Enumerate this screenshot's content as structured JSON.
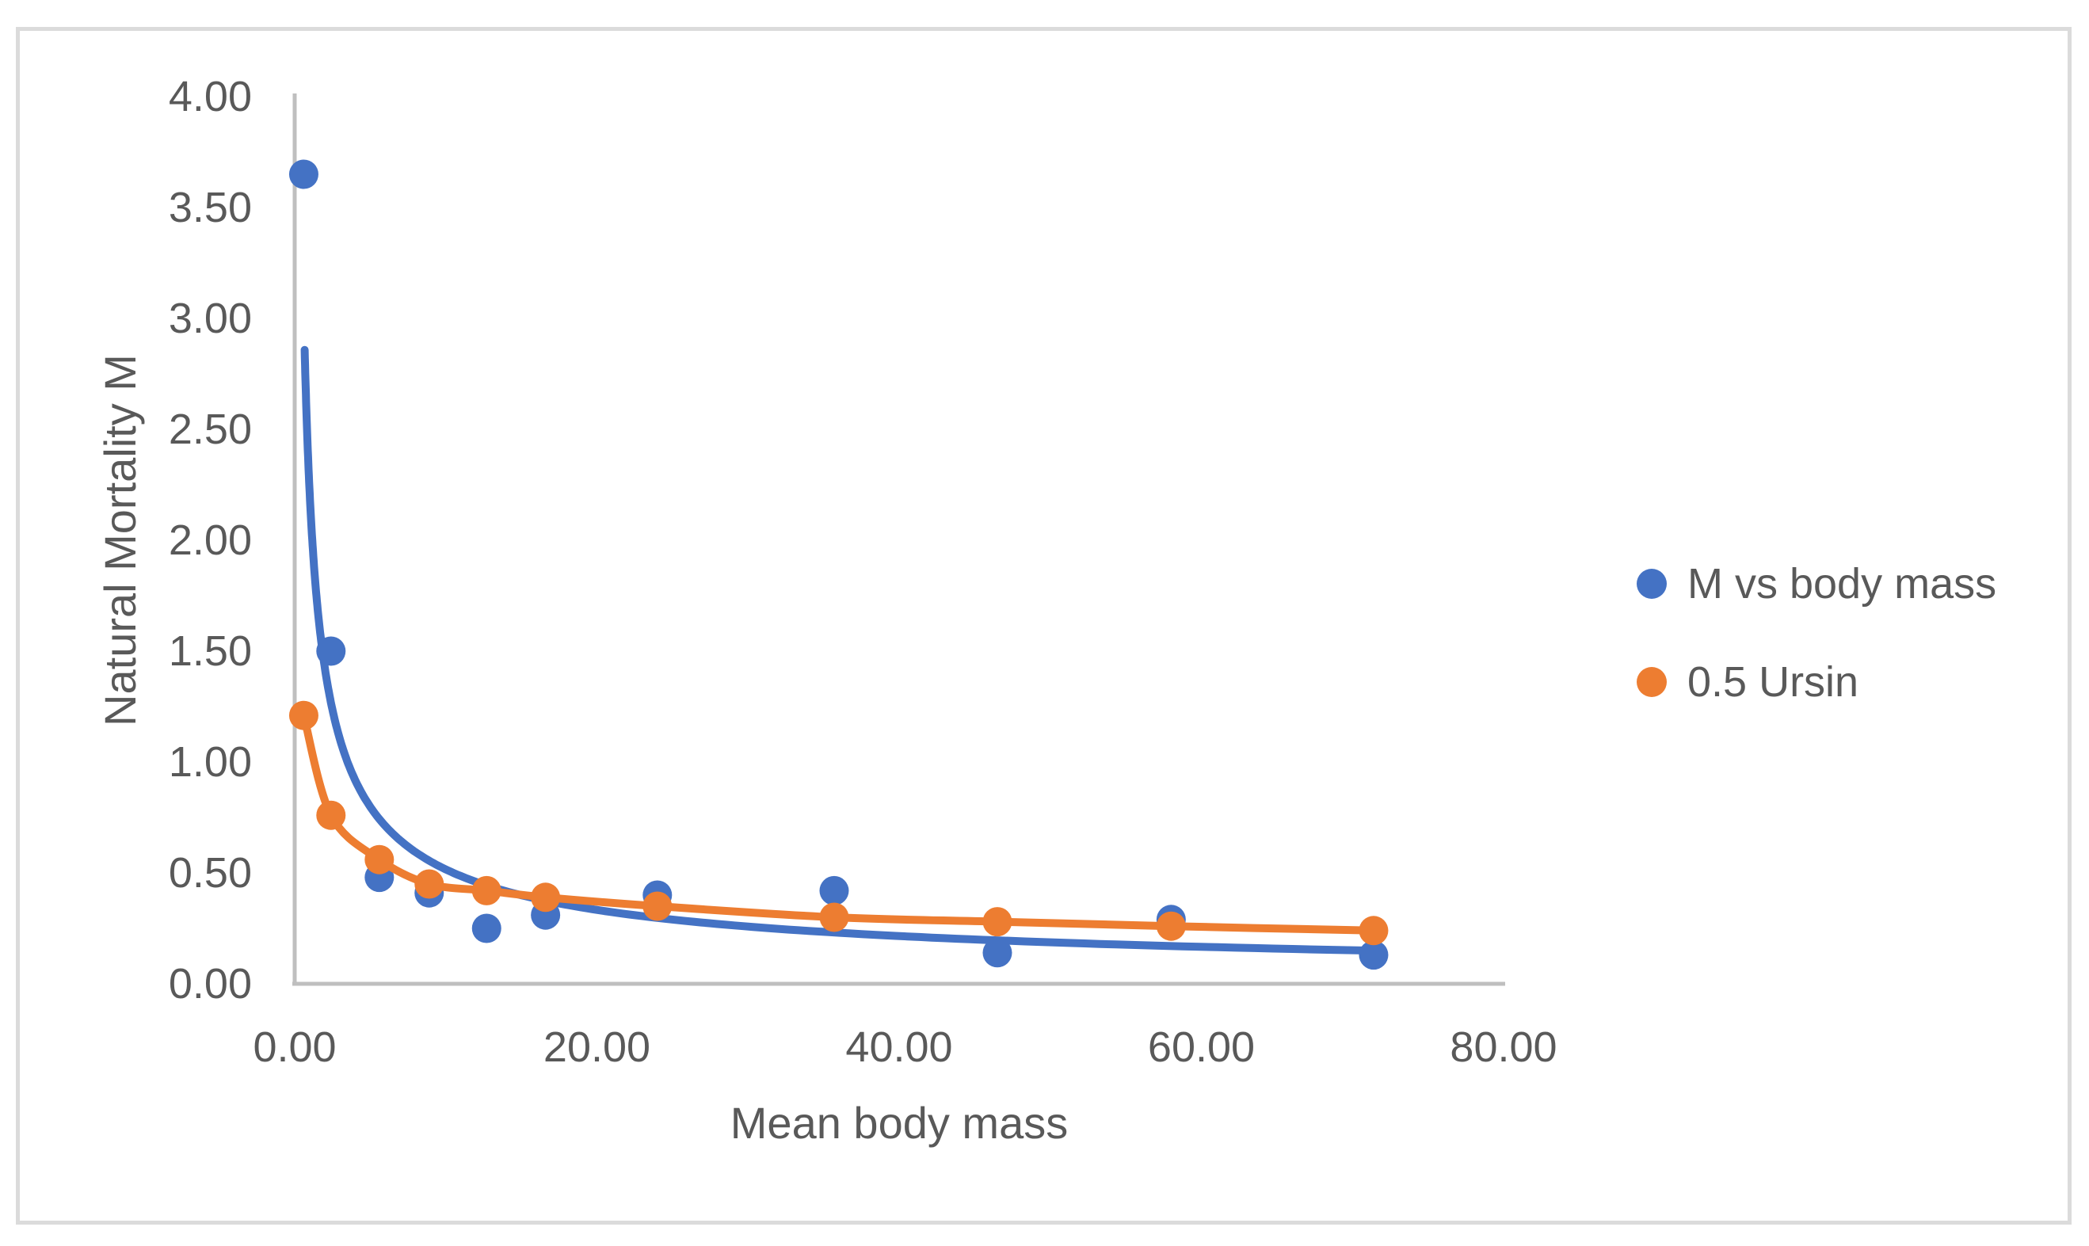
{
  "frame": {
    "border_color": "#DBDBDB",
    "background_color": "#FFFFFF"
  },
  "axes_style": {
    "axis_line_color": "#BFBFBF",
    "tick_label_color": "#595959",
    "title_color": "#595959"
  },
  "chart_data": {
    "type": "scatter",
    "title": "",
    "xlabel": "Mean body mass",
    "ylabel": "Natural Mortality M",
    "xlim": [
      0,
      80
    ],
    "ylim": [
      0,
      4
    ],
    "grid": false,
    "legend_position": "right-middle",
    "x_ticks": [
      {
        "value": 0,
        "label": "0.00"
      },
      {
        "value": 20,
        "label": "20.00"
      },
      {
        "value": 40,
        "label": "40.00"
      },
      {
        "value": 60,
        "label": "60.00"
      },
      {
        "value": 80,
        "label": "80.00"
      }
    ],
    "y_ticks": [
      {
        "value": 0.0,
        "label": "0.00"
      },
      {
        "value": 0.5,
        "label": "0.50"
      },
      {
        "value": 1.0,
        "label": "1.00"
      },
      {
        "value": 1.5,
        "label": "1.50"
      },
      {
        "value": 2.0,
        "label": "2.00"
      },
      {
        "value": 2.5,
        "label": "2.50"
      },
      {
        "value": 3.0,
        "label": "3.00"
      },
      {
        "value": 3.5,
        "label": "3.50"
      },
      {
        "value": 4.0,
        "label": "4.00"
      }
    ],
    "series": [
      {
        "name": "M vs body mass",
        "color": "#4472C4",
        "style": "markers-only",
        "points": [
          [
            0.6,
            3.65
          ],
          [
            2.4,
            1.5
          ],
          [
            5.6,
            0.48
          ],
          [
            8.9,
            0.41
          ],
          [
            12.7,
            0.25
          ],
          [
            16.6,
            0.31
          ],
          [
            24.0,
            0.4
          ],
          [
            35.7,
            0.42
          ],
          [
            46.5,
            0.14
          ],
          [
            58.0,
            0.29
          ],
          [
            71.4,
            0.13
          ]
        ],
        "trendline": {
          "type": "power",
          "a": 2.2,
          "b": -0.63,
          "x_start": 0.66,
          "x_end": 71.4
        }
      },
      {
        "name": "0.5 Ursin",
        "color": "#ED7D31",
        "style": "smooth-line-with-markers",
        "points": [
          [
            0.6,
            1.21
          ],
          [
            2.4,
            0.76
          ],
          [
            5.6,
            0.56
          ],
          [
            8.9,
            0.45
          ],
          [
            12.7,
            0.42
          ],
          [
            16.6,
            0.39
          ],
          [
            24.0,
            0.35
          ],
          [
            35.7,
            0.3
          ],
          [
            46.5,
            0.28
          ],
          [
            58.0,
            0.26
          ],
          [
            71.4,
            0.24
          ]
        ]
      }
    ]
  }
}
